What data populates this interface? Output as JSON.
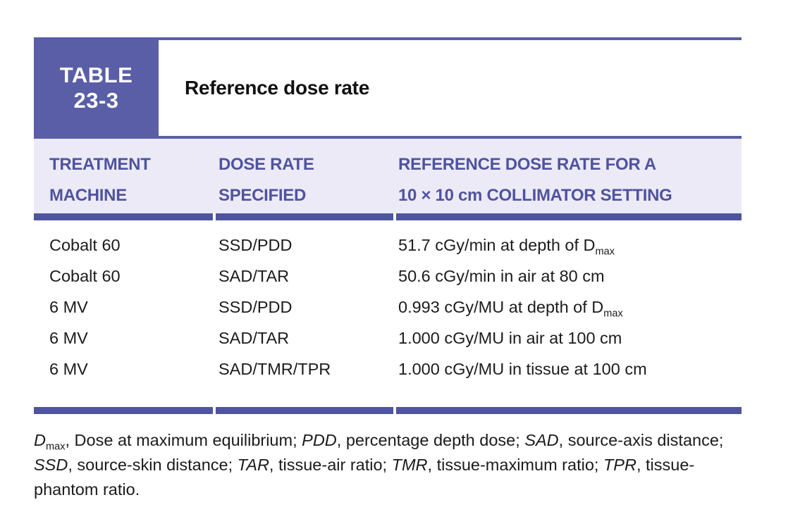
{
  "colors": {
    "accent_purple": "#5a5ea7",
    "rule_purple": "#4f549e",
    "header_band_lavender": "#eceaf6",
    "header_text_purple": "#4f53a0",
    "body_text": "#1c1c1c",
    "title_text": "#111111",
    "tag_text": "#ffffff"
  },
  "table": {
    "label": {
      "line1": "TABLE",
      "line2": "23-3"
    },
    "title": "Reference dose rate",
    "columns": [
      {
        "line1": "TREATMENT",
        "line2": "MACHINE"
      },
      {
        "line1": "DOSE RATE",
        "line2": "SPECIFIED"
      },
      {
        "line1": "REFERENCE DOSE RATE FOR A",
        "line2": "10 × 10 cm COLLIMATOR SETTING"
      }
    ],
    "rows": [
      {
        "machine": "Cobalt 60",
        "specified": "SSD/PDD",
        "reference": [
          {
            "t": "51.7 cGy/min at depth of D"
          },
          {
            "t": "max",
            "sub": true
          }
        ]
      },
      {
        "machine": "Cobalt 60",
        "specified": "SAD/TAR",
        "reference": [
          {
            "t": "50.6 cGy/min in air at 80 cm"
          }
        ]
      },
      {
        "machine": "6 MV",
        "specified": "SSD/PDD",
        "reference": [
          {
            "t": "0.993 cGy/MU at depth of D"
          },
          {
            "t": "max",
            "sub": true
          }
        ]
      },
      {
        "machine": "6 MV",
        "specified": "SAD/TAR",
        "reference": [
          {
            "t": "1.000 cGy/MU in air at 100 cm"
          }
        ]
      },
      {
        "machine": "6 MV",
        "specified": "SAD/TMR/TPR",
        "reference": [
          {
            "t": "1.000 cGy/MU in tissue at 100 cm"
          }
        ]
      }
    ]
  },
  "footnote": [
    {
      "t": "D",
      "i": true
    },
    {
      "t": "max",
      "sub": true
    },
    {
      "t": ", Dose at maximum equilibrium; "
    },
    {
      "t": "PDD",
      "i": true
    },
    {
      "t": ", percentage depth dose; "
    },
    {
      "t": "SAD",
      "i": true
    },
    {
      "t": ", source-axis distance; "
    },
    {
      "t": "SSD",
      "i": true
    },
    {
      "t": ", source-skin distance; "
    },
    {
      "t": "TAR",
      "i": true
    },
    {
      "t": ", tissue-air ratio; "
    },
    {
      "t": "TMR",
      "i": true
    },
    {
      "t": ", tissue-maximum ratio; "
    },
    {
      "t": "TPR",
      "i": true
    },
    {
      "t": ", tissue-phantom ratio."
    }
  ]
}
